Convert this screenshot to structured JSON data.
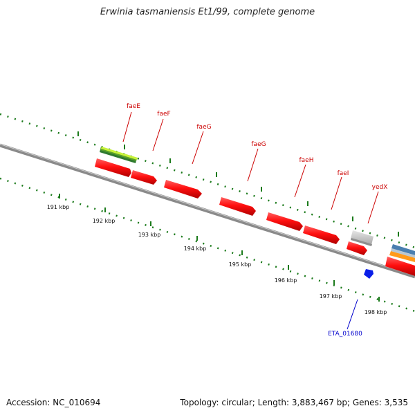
{
  "title": "Erwinia tasmaniensis Et1/99, complete genome",
  "footer": {
    "accession": "Accession: NC_010694",
    "summary": "Topology: circular; Length: 3,883,467 bp; Genes: 3,535"
  },
  "colors": {
    "backbone": "#7a7a7a",
    "tick": "#1a7a1a",
    "cds": "#ff1010",
    "cds_label": "#cc0000",
    "blue_label": "#0000cc"
  },
  "scale": {
    "unit": "kbp",
    "ticks": [
      {
        "label": "191 kbp"
      },
      {
        "label": "192 kbp"
      },
      {
        "label": "193 kbp"
      },
      {
        "label": "194 kbp"
      },
      {
        "label": "195 kbp"
      },
      {
        "label": "196 kbp"
      },
      {
        "label": "197 kbp"
      },
      {
        "label": "198 kbp"
      }
    ]
  },
  "genes": [
    {
      "name": "faeE",
      "color": "#cc0000"
    },
    {
      "name": "faeF",
      "color": "#cc0000"
    },
    {
      "name": "faeG",
      "color": "#cc0000"
    },
    {
      "name": "faeG",
      "color": "#cc0000"
    },
    {
      "name": "faeH",
      "color": "#cc0000"
    },
    {
      "name": "faeI",
      "color": "#cc0000"
    },
    {
      "name": "yedX",
      "color": "#cc0000"
    },
    {
      "name": "ETA_01680",
      "color": "#0000cc"
    }
  ]
}
